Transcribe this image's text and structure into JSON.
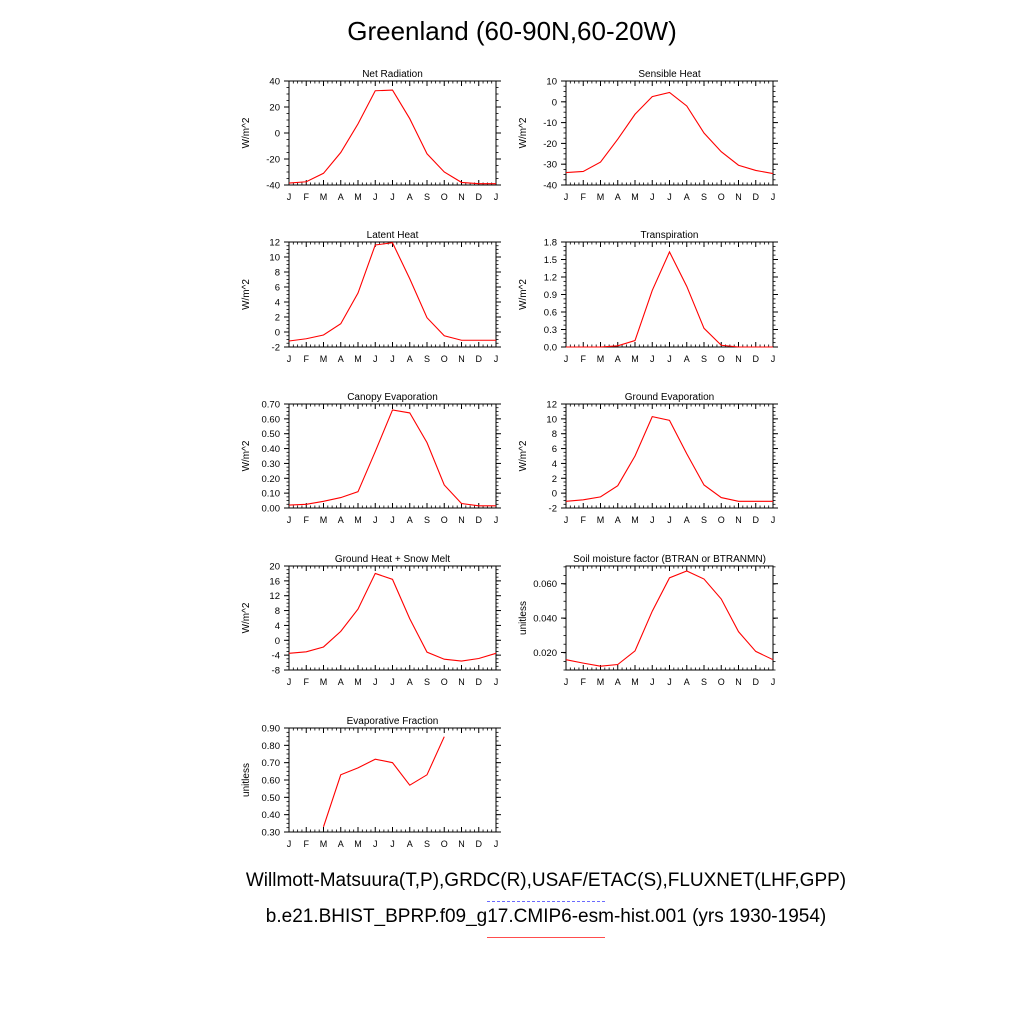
{
  "title": "Greenland (60-90N,60-20W)",
  "legend": {
    "obs": "Willmott-Matsuura(T,P),GRDC(R),USAF/ETAC(S),FLUXNET(LHF,GPP)",
    "model": "b.e21.BHIST_BPRP.f09_g17.CMIP6-esm-hist.001 (yrs 1930-1954)"
  },
  "colors": {
    "model": "#ff0000",
    "obs": "#6b6bff"
  },
  "chart_data": [
    {
      "type": "line",
      "title": "Net Radiation",
      "ylabel": "W/m^2",
      "x": [
        "J",
        "F",
        "M",
        "A",
        "M",
        "J",
        "J",
        "A",
        "S",
        "O",
        "N",
        "D",
        "J"
      ],
      "ylim": [
        -40,
        40
      ],
      "yticks": [
        "40",
        "20",
        "0",
        "-20",
        "-40"
      ],
      "yticks_values": [
        40,
        20,
        0,
        -20,
        -40
      ],
      "series": [
        {
          "values": [
            -38.5,
            -37.5,
            -31,
            -15,
            7,
            32.5,
            33,
            11,
            -16,
            -30,
            -38,
            -39,
            -39
          ]
        }
      ]
    },
    {
      "type": "line",
      "title": "Sensible Heat",
      "ylabel": "W/m^2",
      "x": [
        "J",
        "F",
        "M",
        "A",
        "M",
        "J",
        "J",
        "A",
        "S",
        "O",
        "N",
        "D",
        "J"
      ],
      "ylim": [
        -40,
        10
      ],
      "yticks": [
        "10",
        "0",
        "-10",
        "-20",
        "-30",
        "-40"
      ],
      "yticks_values": [
        10,
        0,
        -10,
        -20,
        -30,
        -40
      ],
      "series": [
        {
          "values": [
            -34,
            -33.5,
            -29,
            -18,
            -6,
            2.5,
            4.5,
            -2,
            -15,
            -24,
            -30.5,
            -33,
            -34.5
          ]
        }
      ]
    },
    {
      "type": "line",
      "title": "Latent Heat",
      "ylabel": "W/m^2",
      "x": [
        "J",
        "F",
        "M",
        "A",
        "M",
        "J",
        "J",
        "A",
        "S",
        "O",
        "N",
        "D",
        "J"
      ],
      "ylim": [
        -2,
        12
      ],
      "yticks": [
        "12",
        "10",
        "8",
        "6",
        "4",
        "2",
        "0",
        "-2"
      ],
      "yticks_values": [
        12,
        10,
        8,
        6,
        4,
        2,
        0,
        -2
      ],
      "series": [
        {
          "values": [
            -1.2,
            -0.9,
            -0.4,
            1.1,
            5.2,
            11.6,
            11.9,
            7.1,
            1.9,
            -0.5,
            -1.1,
            -1.1,
            -1.1
          ]
        }
      ]
    },
    {
      "type": "line",
      "title": "Transpiration",
      "ylabel": "W/m^2",
      "x": [
        "J",
        "F",
        "M",
        "A",
        "M",
        "J",
        "J",
        "A",
        "S",
        "O",
        "N",
        "D",
        "J"
      ],
      "ylim": [
        0,
        1.8
      ],
      "yticks": [
        "1.8",
        "1.5",
        "1.2",
        "0.9",
        "0.6",
        "0.3",
        "0.0"
      ],
      "yticks_values": [
        1.8,
        1.5,
        1.2,
        0.9,
        0.6,
        0.3,
        0.0
      ],
      "series": [
        {
          "values": [
            0.0,
            0.0,
            0.0,
            0.02,
            0.11,
            0.97,
            1.63,
            1.04,
            0.32,
            0.03,
            0.0,
            0.0,
            0.0
          ]
        }
      ]
    },
    {
      "type": "line",
      "title": "Canopy Evaporation",
      "ylabel": "W/m^2",
      "x": [
        "J",
        "F",
        "M",
        "A",
        "M",
        "J",
        "J",
        "A",
        "S",
        "O",
        "N",
        "D",
        "J"
      ],
      "ylim": [
        0,
        0.7
      ],
      "yticks": [
        "0.70",
        "0.60",
        "0.50",
        "0.40",
        "0.30",
        "0.20",
        "0.10",
        "0.00"
      ],
      "yticks_values": [
        0.7,
        0.6,
        0.5,
        0.4,
        0.3,
        0.2,
        0.1,
        0.0
      ],
      "series": [
        {
          "values": [
            0.02,
            0.025,
            0.045,
            0.07,
            0.11,
            0.38,
            0.66,
            0.64,
            0.44,
            0.155,
            0.03,
            0.015,
            0.015
          ]
        }
      ]
    },
    {
      "type": "line",
      "title": "Ground Evaporation",
      "ylabel": "W/m^2",
      "x": [
        "J",
        "F",
        "M",
        "A",
        "M",
        "J",
        "J",
        "A",
        "S",
        "O",
        "N",
        "D",
        "J"
      ],
      "ylim": [
        -2,
        12
      ],
      "yticks": [
        "12",
        "10",
        "8",
        "6",
        "4",
        "2",
        "0",
        "-2"
      ],
      "yticks_values": [
        12,
        10,
        8,
        6,
        4,
        2,
        0,
        -2
      ],
      "series": [
        {
          "values": [
            -1.1,
            -0.9,
            -0.5,
            1.0,
            5.0,
            10.3,
            9.8,
            5.3,
            1.1,
            -0.6,
            -1.1,
            -1.1,
            -1.1
          ]
        }
      ]
    },
    {
      "type": "line",
      "title": "Ground Heat + Snow Melt",
      "ylabel": "W/m^2",
      "x": [
        "J",
        "F",
        "M",
        "A",
        "M",
        "J",
        "J",
        "A",
        "S",
        "O",
        "N",
        "D",
        "J"
      ],
      "ylim": [
        -8,
        20
      ],
      "yticks": [
        "20",
        "16",
        "12",
        "8",
        "4",
        "0",
        "-4",
        "-8"
      ],
      "yticks_values": [
        20,
        16,
        12,
        8,
        4,
        0,
        -4,
        -8
      ],
      "series": [
        {
          "values": [
            -3.5,
            -3.1,
            -1.8,
            2.4,
            8.4,
            18.0,
            16.4,
            5.8,
            -3.2,
            -5.1,
            -5.6,
            -4.9,
            -3.5
          ]
        }
      ]
    },
    {
      "type": "line",
      "title": "Soil moisture factor (BTRAN or BTRANMN)",
      "ylabel": "unitless",
      "x": [
        "J",
        "F",
        "M",
        "A",
        "M",
        "J",
        "J",
        "A",
        "S",
        "O",
        "N",
        "D",
        "J"
      ],
      "ylim": [
        0.0098,
        0.0703
      ],
      "yticks": [
        "0.060",
        "0.040",
        "0.020"
      ],
      "yticks_values": [
        0.06,
        0.04,
        0.02
      ],
      "series": [
        {
          "values": [
            0.0158,
            0.0138,
            0.012,
            0.013,
            0.0209,
            0.044,
            0.0634,
            0.0674,
            0.0627,
            0.0511,
            0.0321,
            0.0206,
            0.0158
          ]
        }
      ]
    },
    {
      "type": "line",
      "title": "Evaporative Fraction",
      "ylabel": "unitless",
      "x": [
        "J",
        "F",
        "M",
        "A",
        "M",
        "J",
        "J",
        "A",
        "S",
        "O",
        "N",
        "D",
        "J"
      ],
      "ylim": [
        0.3,
        0.9
      ],
      "yticks": [
        "0.90",
        "0.80",
        "0.70",
        "0.60",
        "0.50",
        "0.40",
        "0.30"
      ],
      "yticks_values": [
        0.9,
        0.8,
        0.7,
        0.6,
        0.5,
        0.4,
        0.3
      ],
      "series": [
        {
          "values": [
            null,
            null,
            0.33,
            0.63,
            0.67,
            0.72,
            0.7,
            0.57,
            0.63,
            0.85,
            null,
            null,
            null
          ]
        }
      ]
    }
  ]
}
